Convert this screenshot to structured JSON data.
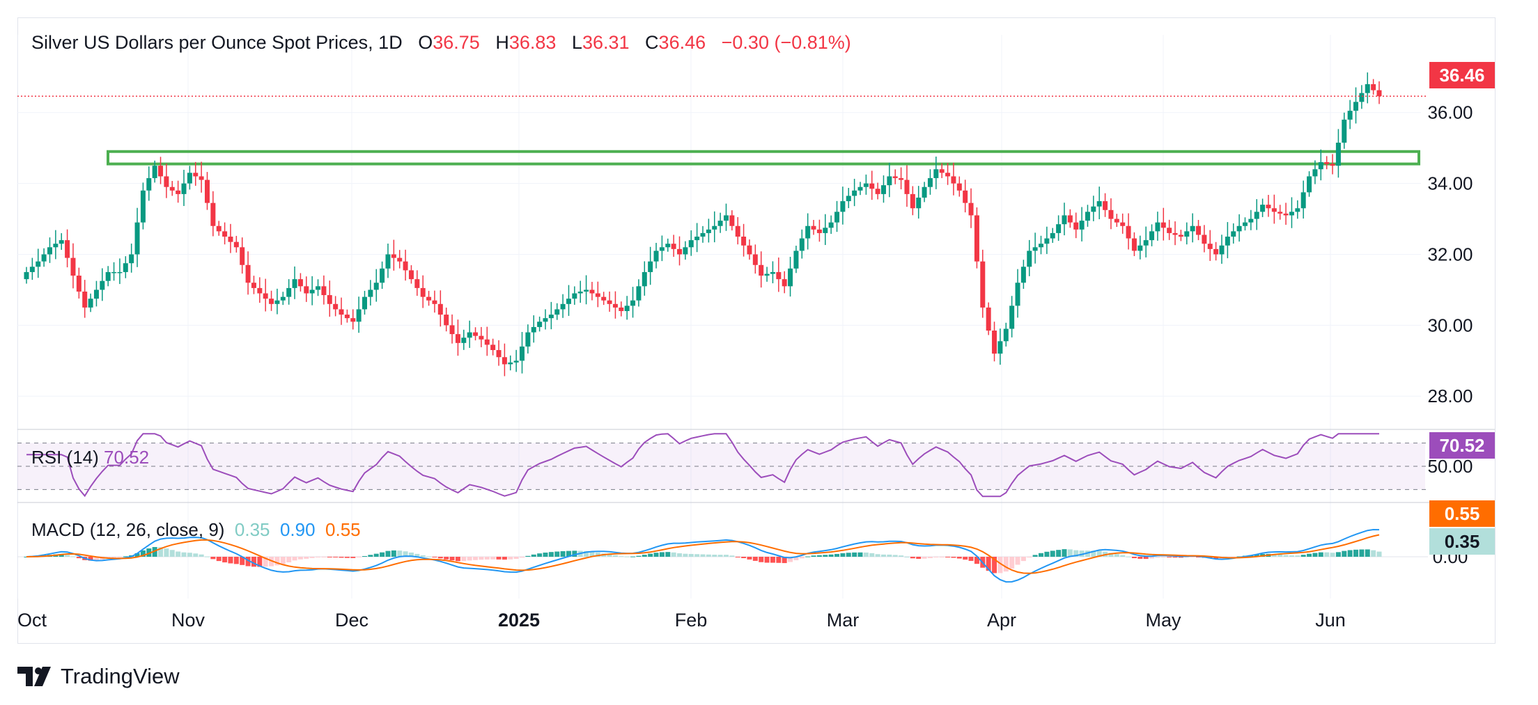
{
  "header": {
    "title": "Silver US Dollars per Ounce Spot Prices, 1D",
    "open_label": "O",
    "open": "36.75",
    "high_label": "H",
    "high": "36.83",
    "low_label": "L",
    "low": "36.31",
    "close_label": "C",
    "close": "36.46",
    "change": "−0.30 (−0.81%)"
  },
  "colors": {
    "up": "#089981",
    "down": "#f23645",
    "rsi": "#9c4dbb",
    "macd": "#2962ff",
    "macd_line": "#2196f3",
    "signal": "#ff6d00",
    "resistance": "#4caf50",
    "hist_up_strong": "#26a69a",
    "hist_up_weak": "#b2dfdb",
    "hist_down_strong": "#ff5252",
    "hist_down_weak": "#ffcdd2"
  },
  "rsi": {
    "label": "RSI (14)",
    "value": "70.52",
    "level_label": "50.00"
  },
  "macd": {
    "label": "MACD (12, 26, close, 9)",
    "hist_value": "0.35",
    "macd_value": "0.90",
    "signal_value": "0.55",
    "zero_label": "0.00"
  },
  "last_price_badge": "36.46",
  "brand": {
    "name": "TradingView",
    "logo_icon": "tradingview-logo-icon"
  },
  "chart_data": {
    "type": "candlestick",
    "y_ticks": [
      "36.00",
      "34.00",
      "32.00",
      "30.00",
      "28.00"
    ],
    "x_ticks": [
      "Oct",
      "Nov",
      "Dec",
      "2025",
      "Feb",
      "Mar",
      "Apr",
      "May",
      "Jun"
    ],
    "ylim": [
      27.2,
      37.8
    ],
    "grid": true,
    "annotations": [
      {
        "type": "rectangle",
        "label": "",
        "y_low": 34.55,
        "y_high": 34.9
      }
    ],
    "ohlc_anchor_closes": [
      31.5,
      31.8,
      32.2,
      32.4,
      31.4,
      30.5,
      31.0,
      31.5,
      31.5,
      32.0,
      33.8,
      34.5,
      33.9,
      33.7,
      34.3,
      34.1,
      32.8,
      32.5,
      32.2,
      31.2,
      30.9,
      30.6,
      30.8,
      31.3,
      30.9,
      31.1,
      30.6,
      30.3,
      30.1,
      30.8,
      31.2,
      32.0,
      31.8,
      31.3,
      30.8,
      30.6,
      30.0,
      29.5,
      29.8,
      29.6,
      29.3,
      28.9,
      29.0,
      29.8,
      30.1,
      30.3,
      30.6,
      30.9,
      31.0,
      30.8,
      30.6,
      30.4,
      30.7,
      31.5,
      32.1,
      32.3,
      32.0,
      32.4,
      32.6,
      32.8,
      33.1,
      32.5,
      32.0,
      31.4,
      31.5,
      31.1,
      32.1,
      32.8,
      32.6,
      32.9,
      33.5,
      33.8,
      34.0,
      33.7,
      34.2,
      34.1,
      33.3,
      33.9,
      34.4,
      34.2,
      33.8,
      33.1,
      30.5,
      29.2,
      29.9,
      31.2,
      32.1,
      32.3,
      32.6,
      33.1,
      32.7,
      33.2,
      33.5,
      33.0,
      32.8,
      32.1,
      32.4,
      32.9,
      32.6,
      32.5,
      32.8,
      32.3,
      32.0,
      32.5,
      32.8,
      33.0,
      33.4,
      33.2,
      33.1,
      33.3,
      34.2,
      34.6,
      34.5,
      35.8,
      36.3,
      36.8,
      36.46
    ],
    "series": [
      {
        "name": "RSI (14)",
        "last": 70.52
      },
      {
        "name": "MACD",
        "last": 0.9
      },
      {
        "name": "Signal",
        "last": 0.55
      },
      {
        "name": "Histogram",
        "last": 0.35
      }
    ]
  }
}
